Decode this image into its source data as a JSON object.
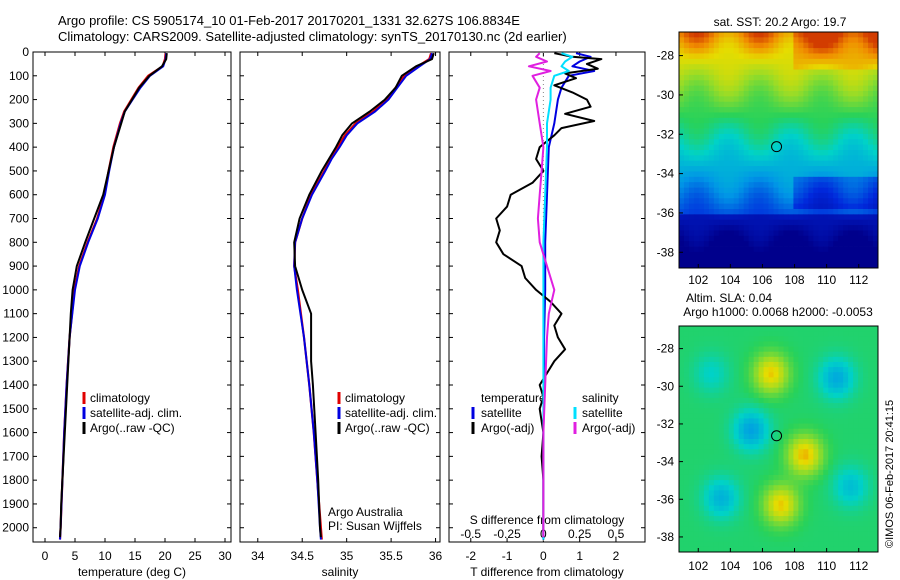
{
  "header": {
    "line1": "Argo profile: CS 5905174_10 01-Feb-2017 20170201_1331 32.627S 106.8834E",
    "line2": "Climatology: CARS2009. Satellite-adjusted climatology: synTS_20170130.nc (2d earlier)"
  },
  "sst_map_title": "sat. SST: 20.2 Argo: 19.7",
  "sla_map_title1": "Altim. SLA: 0.04",
  "sla_map_title2": "Argo h1000: 0.0068 h2000: -0.0053",
  "credit": "©IMOS 06-Feb-2017 20:41:15",
  "attribution": {
    "line1": "Argo Australia",
    "line2": "PI: Susan Wijffels"
  },
  "diff_axis_top_label": "S difference from climatology",
  "legend1": {
    "climatology": "climatology",
    "sat": "satellite-adj. clim.",
    "argo": "Argo(..raw -QC)"
  },
  "legend3": {
    "temp_head": "temperature",
    "sal_head": "salinity",
    "temp_sat": "satellite",
    "temp_argo": "Argo(-adj)",
    "sal_sat": "satellite",
    "sal_argo": "Argo(-adj)"
  },
  "colors": {
    "climatology": "#e00000",
    "satellite": "#0000e0",
    "argo": "#000000",
    "sal_satellite": "#00e0ff",
    "sal_argo": "#e020e0"
  },
  "chart_data": [
    {
      "type": "line",
      "xlabel": "temperature (deg C)",
      "xlim": [
        -2,
        31
      ],
      "xticks": [
        0,
        5,
        10,
        15,
        20,
        25,
        30
      ],
      "ylim": [
        0,
        2060
      ],
      "yticks": [
        0,
        100,
        200,
        300,
        400,
        500,
        600,
        700,
        800,
        900,
        1000,
        1100,
        1200,
        1300,
        1400,
        1500,
        1600,
        1700,
        1800,
        1900,
        2000
      ],
      "x_axis_position": "bottom",
      "series": [
        {
          "name": "climatology",
          "color": "#e00000",
          "depth": [
            5,
            30,
            60,
            100,
            150,
            200,
            250,
            300,
            400,
            500,
            600,
            700,
            800,
            900,
            1000,
            1200,
            1400,
            1600,
            1800,
            2000,
            2050
          ],
          "value": [
            20.1,
            20.0,
            19.6,
            17.2,
            15.6,
            14.4,
            13.2,
            12.5,
            11.4,
            10.6,
            9.9,
            8.7,
            7.1,
            5.7,
            4.9,
            4.1,
            3.6,
            3.2,
            2.9,
            2.6,
            2.5
          ]
        },
        {
          "name": "satellite-adj. clim.",
          "color": "#0000e0",
          "depth": [
            5,
            30,
            60,
            100,
            150,
            200,
            250,
            300,
            400,
            500,
            600,
            700,
            800,
            900,
            1000,
            1200,
            1400,
            1600,
            1800,
            2000,
            2050
          ],
          "value": [
            20.2,
            20.1,
            19.7,
            17.5,
            15.9,
            14.6,
            13.3,
            12.6,
            11.5,
            10.7,
            10.0,
            8.8,
            7.2,
            5.8,
            5.0,
            4.1,
            3.6,
            3.2,
            2.9,
            2.6,
            2.5
          ]
        },
        {
          "name": "Argo(..raw -QC)",
          "color": "#000000",
          "depth": [
            5,
            30,
            60,
            100,
            150,
            200,
            250,
            300,
            400,
            500,
            600,
            700,
            800,
            900,
            1000,
            1100,
            1200,
            1300,
            1400,
            1500,
            1600,
            1700,
            1800,
            1900,
            2000,
            2040
          ],
          "value": [
            20.3,
            20.2,
            19.5,
            17.4,
            15.7,
            14.5,
            13.3,
            12.7,
            11.5,
            10.6,
            9.7,
            8.2,
            6.7,
            5.3,
            4.6,
            4.3,
            4.1,
            3.9,
            3.7,
            3.5,
            3.3,
            3.1,
            2.9,
            2.7,
            2.6,
            2.5
          ]
        }
      ]
    },
    {
      "type": "line",
      "xlabel": "salinity",
      "xlim": [
        33.8,
        36.05
      ],
      "xticks": [
        34,
        34.5,
        35,
        35.5,
        36
      ],
      "ylim": [
        0,
        2060
      ],
      "x_axis_position": "bottom",
      "series": [
        {
          "name": "climatology",
          "color": "#e00000",
          "depth": [
            5,
            30,
            60,
            100,
            150,
            200,
            250,
            300,
            350,
            400,
            450,
            500,
            600,
            700,
            800,
            900,
            1000,
            1200,
            1400,
            1600,
            1800,
            2000,
            2050
          ],
          "value": [
            35.95,
            35.93,
            35.8,
            35.65,
            35.55,
            35.45,
            35.3,
            35.1,
            34.98,
            34.9,
            34.82,
            34.75,
            34.6,
            34.5,
            34.42,
            34.41,
            34.45,
            34.52,
            34.58,
            34.63,
            34.67,
            34.71,
            34.72
          ]
        },
        {
          "name": "satellite-adj. clim.",
          "color": "#0000e0",
          "depth": [
            5,
            30,
            60,
            100,
            150,
            200,
            250,
            300,
            350,
            400,
            450,
            500,
            600,
            700,
            800,
            900,
            1000,
            1200,
            1400,
            1600,
            1800,
            2000,
            2050
          ],
          "value": [
            35.96,
            35.94,
            35.82,
            35.67,
            35.57,
            35.47,
            35.32,
            35.12,
            35.0,
            34.92,
            34.83,
            34.76,
            34.61,
            34.5,
            34.42,
            34.41,
            34.44,
            34.52,
            34.58,
            34.63,
            34.67,
            34.7,
            34.71
          ]
        },
        {
          "name": "Argo(..raw -QC)",
          "color": "#000000",
          "depth": [
            5,
            30,
            60,
            100,
            150,
            200,
            250,
            300,
            350,
            400,
            450,
            500,
            600,
            700,
            800,
            900,
            1000,
            1100,
            1200,
            1300,
            1400,
            1600,
            1800,
            2000,
            2040
          ],
          "value": [
            35.98,
            35.96,
            35.78,
            35.62,
            35.55,
            35.43,
            35.26,
            35.06,
            34.95,
            34.88,
            34.8,
            34.72,
            34.58,
            34.47,
            34.41,
            34.42,
            34.5,
            34.6,
            34.6,
            34.6,
            34.62,
            34.65,
            34.68,
            34.7,
            34.71
          ]
        }
      ]
    },
    {
      "type": "line",
      "xlabel": "T difference from climatology",
      "xlim": [
        -2.6,
        2.8
      ],
      "xticks": [
        -2,
        -1,
        0,
        1,
        2
      ],
      "xlabel_top": "S difference from climatology",
      "xticks_top": [
        -0.5,
        -0.25,
        0,
        0.25,
        0.5
      ],
      "top_tick_labels": [
        "-0.5",
        "-0.25",
        "0",
        "0.25",
        "0.5"
      ],
      "ylim": [
        0,
        2060
      ],
      "series": [
        {
          "name": "temperature satellite",
          "color": "#0000e0",
          "depth": [
            5,
            20,
            40,
            60,
            80,
            100,
            150,
            200,
            300,
            400,
            600,
            800,
            1000,
            1200,
            1400,
            1600,
            1800,
            2000,
            2050
          ],
          "value": [
            0.9,
            1.3,
            1.0,
            0.8,
            1.4,
            0.7,
            0.5,
            0.4,
            0.3,
            0.15,
            0.1,
            0.05,
            0.05,
            0.02,
            0.02,
            0.0,
            0.0,
            0.0,
            0.0
          ]
        },
        {
          "name": "temperature Argo(-adj)",
          "color": "#000000",
          "depth": [
            5,
            20,
            30,
            50,
            70,
            90,
            110,
            140,
            170,
            200,
            230,
            260,
            290,
            320,
            350,
            400,
            450,
            500,
            550,
            600,
            650,
            700,
            750,
            800,
            850,
            900,
            950,
            1000,
            1050,
            1100,
            1150,
            1200,
            1250,
            1300,
            1350,
            1400,
            1450,
            1500,
            1600,
            1700,
            1800,
            1900,
            2000,
            2040
          ],
          "value": [
            0.3,
            0.8,
            1.6,
            1.2,
            1.5,
            0.6,
            0.9,
            0.3,
            0.8,
            1.2,
            1.3,
            0.6,
            1.4,
            0.5,
            0.3,
            -0.1,
            -0.2,
            0.0,
            -0.3,
            -0.9,
            -1.0,
            -1.3,
            -1.2,
            -1.3,
            -1.1,
            -0.6,
            -0.5,
            -0.2,
            0.2,
            0.5,
            0.3,
            0.4,
            0.6,
            0.3,
            0.1,
            -0.1,
            0.0,
            -0.1,
            0.0,
            -0.05,
            0.0,
            0.0,
            0.0,
            0.0
          ]
        },
        {
          "name": "salinity satellite",
          "color": "#00e0ff",
          "depth": [
            5,
            20,
            40,
            60,
            80,
            100,
            150,
            200,
            300,
            400,
            600,
            800,
            1000,
            1200,
            1400,
            1600,
            1800,
            2000,
            2050
          ],
          "value": [
            0.5,
            0.8,
            0.6,
            0.5,
            0.7,
            0.3,
            0.2,
            0.2,
            0.1,
            0.1,
            0.05,
            0.0,
            0.0,
            0.0,
            0.0,
            0.0,
            0.0,
            0.0,
            0.0
          ]
        },
        {
          "name": "salinity Argo(-adj)",
          "color": "#e020e0",
          "depth": [
            5,
            20,
            40,
            60,
            80,
            100,
            150,
            200,
            300,
            400,
            500,
            600,
            700,
            800,
            900,
            1000,
            1100,
            1200,
            1400,
            1600,
            1800,
            2000,
            2040
          ],
          "value": [
            -0.1,
            -0.2,
            0.1,
            -0.4,
            0.2,
            -0.3,
            -0.1,
            -0.2,
            -0.1,
            0.0,
            -0.05,
            -0.1,
            -0.15,
            -0.1,
            0.1,
            0.3,
            0.15,
            0.1,
            0.05,
            0.0,
            0.0,
            0.0,
            0.0
          ]
        }
      ]
    },
    {
      "type": "heatmap",
      "name": "sat. SST",
      "xlim": [
        100.8,
        113.2
      ],
      "ylim": [
        -38.8,
        -26.8
      ],
      "xticks": [
        102,
        104,
        106,
        108,
        110,
        112
      ],
      "yticks": [
        -28,
        -30,
        -32,
        -34,
        -36,
        -38
      ],
      "argo_position": [
        106.88,
        -32.63
      ]
    },
    {
      "type": "heatmap",
      "name": "Altim. SLA",
      "xlim": [
        100.8,
        113.2
      ],
      "ylim": [
        -38.8,
        -26.8
      ],
      "xticks": [
        102,
        104,
        106,
        108,
        110,
        112
      ],
      "yticks": [
        -28,
        -30,
        -32,
        -34,
        -36,
        -38
      ],
      "argo_position": [
        106.88,
        -32.63
      ]
    }
  ]
}
